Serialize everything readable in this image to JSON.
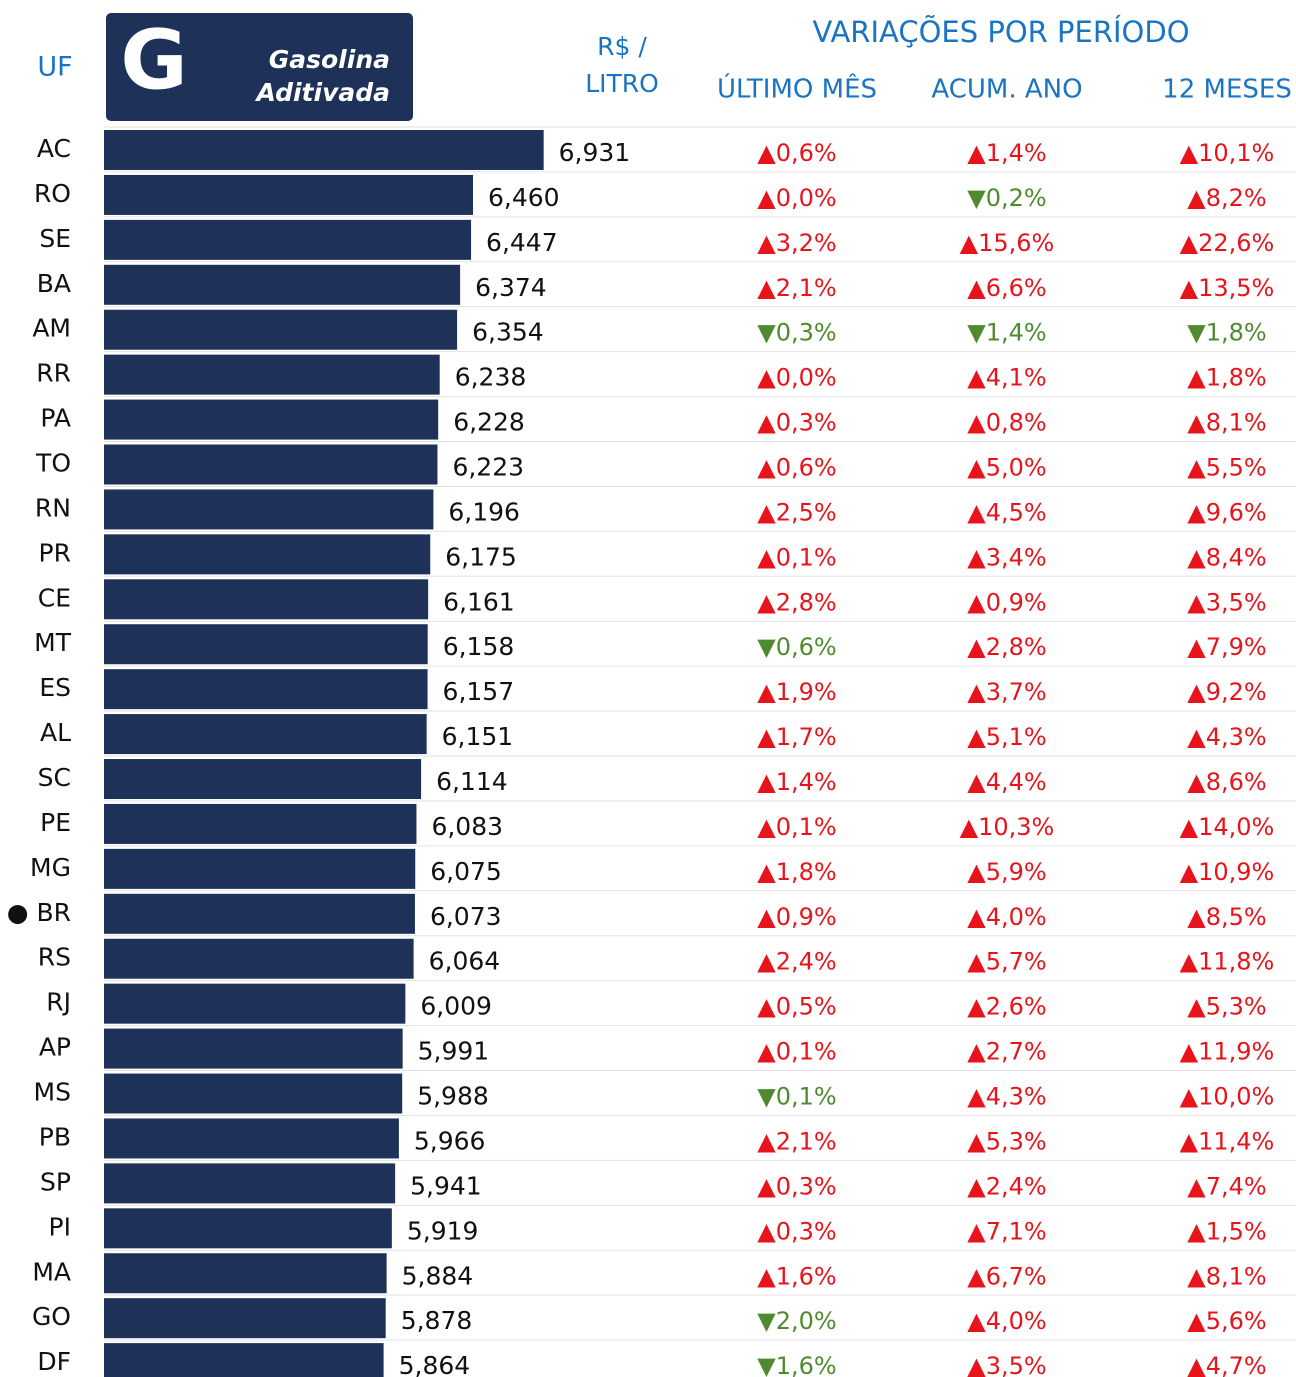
{
  "chart_data": {
    "type": "bar",
    "category_header": "UF",
    "logo": "G",
    "title": [
      "Gasolina",
      "Aditivada"
    ],
    "unit_label": [
      "R$ /",
      "LITRO"
    ],
    "columns_header": "VARIAÇÕES POR PERÍODO",
    "color": "#1e3158",
    "up_color": "#e8141c",
    "down_color": "#4f8a2f",
    "header_color": "#1a74c4",
    "xlim": [
      4,
      7
    ],
    "categories": [
      "AC",
      "RO",
      "SE",
      "BA",
      "AM",
      "RR",
      "PA",
      "TO",
      "RN",
      "PR",
      "CE",
      "MT",
      "ES",
      "AL",
      "SC",
      "PE",
      "MG",
      "● BR",
      "RS",
      "RJ",
      "AP",
      "MS",
      "PB",
      "SP",
      "PI",
      "MA",
      "GO",
      "DF"
    ],
    "values": [
      6.931,
      6.46,
      6.447,
      6.374,
      6.354,
      6.238,
      6.228,
      6.223,
      6.196,
      6.175,
      6.161,
      6.158,
      6.157,
      6.151,
      6.114,
      6.083,
      6.075,
      6.073,
      6.064,
      6.009,
      5.991,
      5.988,
      5.966,
      5.941,
      5.919,
      5.884,
      5.878,
      5.864
    ],
    "value_labels": [
      "6,931",
      "6,460",
      "6,447",
      "6,374",
      "6,354",
      "6,238",
      "6,228",
      "6,223",
      "6,196",
      "6,175",
      "6,161",
      "6,158",
      "6,157",
      "6,151",
      "6,114",
      "6,083",
      "6,075",
      "6,073",
      "6,064",
      "6,009",
      "5,991",
      "5,988",
      "5,966",
      "5,941",
      "5,919",
      "5,884",
      "5,878",
      "5,864"
    ],
    "columns": [
      {
        "name": "ÚLTIMO MÊS",
        "values": [
          0.6,
          0.0,
          3.2,
          2.1,
          -0.3,
          0.0,
          0.3,
          0.6,
          2.5,
          0.1,
          2.8,
          -0.6,
          1.9,
          1.7,
          1.4,
          0.1,
          1.8,
          0.9,
          2.4,
          0.5,
          0.1,
          -0.1,
          2.1,
          0.3,
          0.3,
          1.6,
          -2.0,
          -1.6
        ],
        "value_labels": [
          "▲0,6%",
          "▲0,0%",
          "▲3,2%",
          "▲2,1%",
          "▼0,3%",
          "▲0,0%",
          "▲0,3%",
          "▲0,6%",
          "▲2,5%",
          "▲0,1%",
          "▲2,8%",
          "▼0,6%",
          "▲1,9%",
          "▲1,7%",
          "▲1,4%",
          "▲0,1%",
          "▲1,8%",
          "▲0,9%",
          "▲2,4%",
          "▲0,5%",
          "▲0,1%",
          "▼0,1%",
          "▲2,1%",
          "▲0,3%",
          "▲0,3%",
          "▲1,6%",
          "▼2,0%",
          "▼1,6%"
        ]
      },
      {
        "name": "ACUM. ANO",
        "values": [
          1.4,
          -0.2,
          15.6,
          6.6,
          -1.4,
          4.1,
          0.8,
          5.0,
          4.5,
          3.4,
          0.9,
          2.8,
          3.7,
          5.1,
          4.4,
          10.3,
          5.9,
          4.0,
          5.7,
          2.6,
          2.7,
          4.3,
          5.3,
          2.4,
          7.1,
          6.7,
          4.0,
          3.5
        ],
        "value_labels": [
          "▲1,4%",
          "▼0,2%",
          "▲15,6%",
          "▲6,6%",
          "▼1,4%",
          "▲4,1%",
          "▲0,8%",
          "▲5,0%",
          "▲4,5%",
          "▲3,4%",
          "▲0,9%",
          "▲2,8%",
          "▲3,7%",
          "▲5,1%",
          "▲4,4%",
          "▲10,3%",
          "▲5,9%",
          "▲4,0%",
          "▲5,7%",
          "▲2,6%",
          "▲2,7%",
          "▲4,3%",
          "▲5,3%",
          "▲2,4%",
          "▲7,1%",
          "▲6,7%",
          "▲4,0%",
          "▲3,5%"
        ]
      },
      {
        "name": "12 MESES",
        "values": [
          10.1,
          8.2,
          22.6,
          13.5,
          -1.8,
          1.8,
          8.1,
          5.5,
          9.6,
          8.4,
          3.5,
          7.9,
          9.2,
          4.3,
          8.6,
          14.0,
          10.9,
          8.5,
          11.8,
          5.3,
          11.9,
          10.0,
          11.4,
          7.4,
          1.5,
          8.1,
          5.6,
          4.7
        ],
        "value_labels": [
          "▲10,1%",
          "▲8,2%",
          "▲22,6%",
          "▲13,5%",
          "▼1,8%",
          "▲1,8%",
          "▲8,1%",
          "▲5,5%",
          "▲9,6%",
          "▲8,4%",
          "▲3,5%",
          "▲7,9%",
          "▲9,2%",
          "▲4,3%",
          "▲8,6%",
          "▲14,0%",
          "▲10,9%",
          "▲8,5%",
          "▲11,8%",
          "▲5,3%",
          "▲11,9%",
          "▲10,0%",
          "▲11,4%",
          "▲7,4%",
          "▲1,5%",
          "▲8,1%",
          "▲5,6%",
          "▲4,7%"
        ]
      }
    ]
  }
}
